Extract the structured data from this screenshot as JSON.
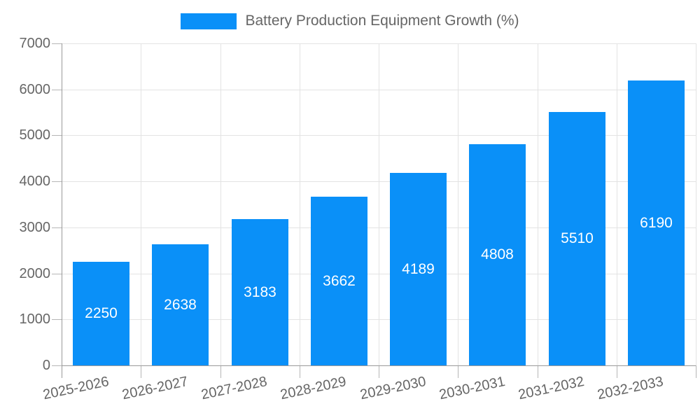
{
  "chart_data": {
    "type": "bar",
    "title": "Battery Production Equipment Growth (%)",
    "legend_position": "top",
    "categories": [
      "2025-2026",
      "2026-2027",
      "2027-2028",
      "2028-2029",
      "2029-2030",
      "2030-2031",
      "2031-2032",
      "2032-2033"
    ],
    "series": [
      {
        "name": "Battery Production Equipment Growth (%)",
        "values": [
          2250,
          2638,
          3183,
          3662,
          4189,
          4808,
          5510,
          6190
        ]
      }
    ],
    "bar_labels": [
      "2250",
      "2638",
      "3183",
      "3662",
      "4189",
      "4808",
      "5510",
      "6190"
    ],
    "xlabel": "",
    "ylabel": "",
    "ylim": [
      0,
      7000
    ],
    "ytick_step": 1000,
    "ytick_labels": [
      "0",
      "1000",
      "2000",
      "3000",
      "4000",
      "5000",
      "6000",
      "7000"
    ],
    "grid": true,
    "colors": {
      "bar": "#0a90f8",
      "bar_label_text": "#ffffff",
      "axis_text": "#666666",
      "grid_line": "#e3e3e3",
      "axis_line": "#9a9a9a",
      "background": "#ffffff"
    }
  }
}
